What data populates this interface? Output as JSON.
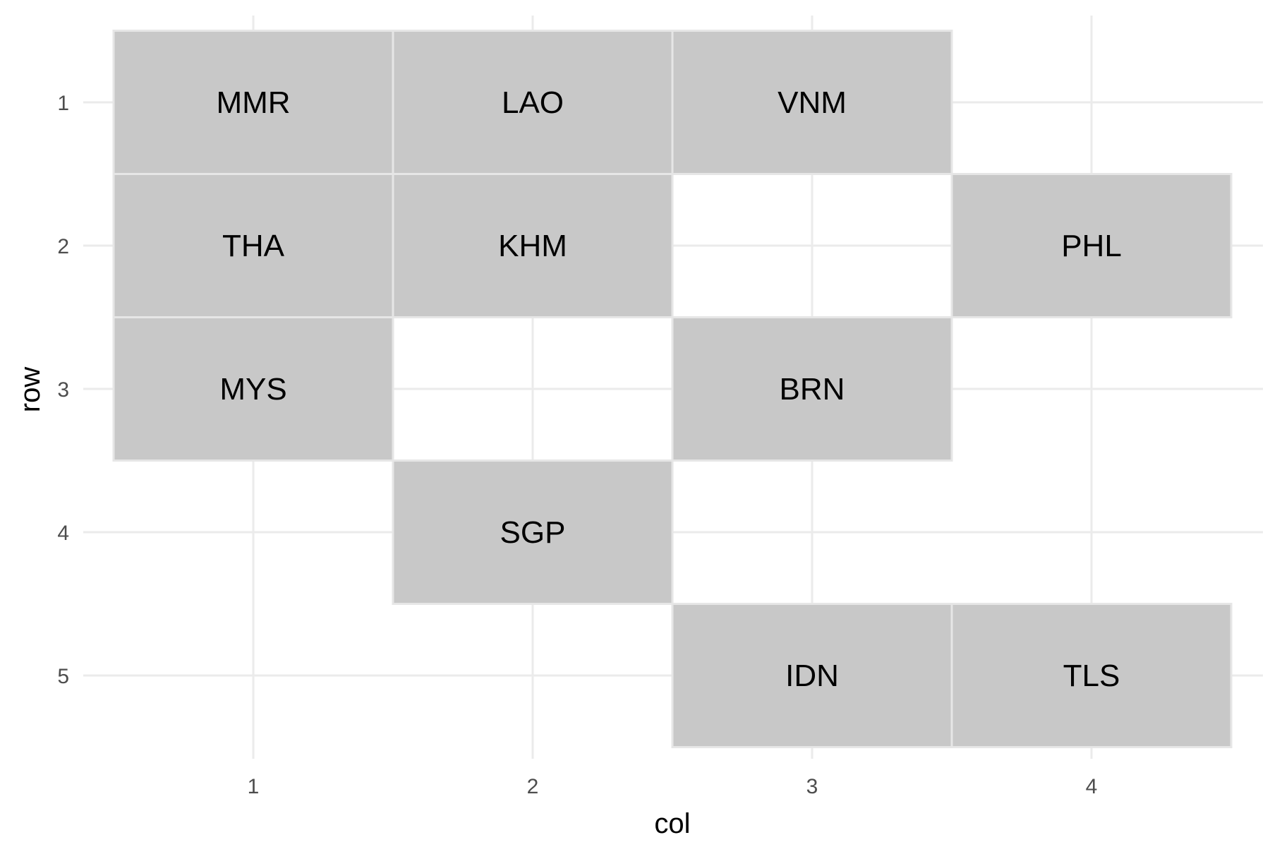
{
  "chart_data": {
    "type": "heatmap",
    "xlabel": "col",
    "ylabel": "row",
    "x_ticks": [
      1,
      2,
      3,
      4
    ],
    "y_ticks": [
      1,
      2,
      3,
      4,
      5
    ],
    "xlim": [
      0.5,
      4.5
    ],
    "ylim": [
      0.5,
      5.5
    ],
    "y_reversed": true,
    "grid": true,
    "tiles": [
      {
        "label": "MMR",
        "col": 1,
        "row": 1
      },
      {
        "label": "LAO",
        "col": 2,
        "row": 1
      },
      {
        "label": "VNM",
        "col": 3,
        "row": 1
      },
      {
        "label": "THA",
        "col": 1,
        "row": 2
      },
      {
        "label": "KHM",
        "col": 2,
        "row": 2
      },
      {
        "label": "PHL",
        "col": 4,
        "row": 2
      },
      {
        "label": "MYS",
        "col": 1,
        "row": 3
      },
      {
        "label": "BRN",
        "col": 3,
        "row": 3
      },
      {
        "label": "SGP",
        "col": 2,
        "row": 4
      },
      {
        "label": "IDN",
        "col": 3,
        "row": 5
      },
      {
        "label": "TLS",
        "col": 4,
        "row": 5
      }
    ],
    "colors": {
      "tile_fill": "#c8c8c8",
      "tile_border": "#e6e6e6",
      "grid": "#ebebeb"
    }
  }
}
